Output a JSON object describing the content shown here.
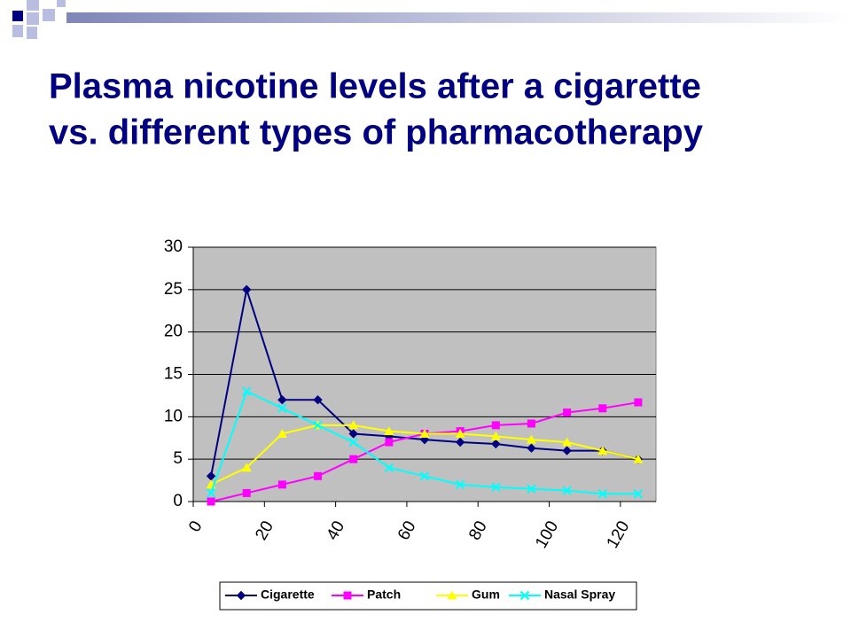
{
  "chart_data": {
    "type": "line",
    "title": [
      "Plasma nicotine levels after a cigarette",
      "vs. different types of pharmacotherapy"
    ],
    "x": [
      5,
      15,
      25,
      35,
      45,
      55,
      65,
      75,
      85,
      95,
      105,
      115,
      125
    ],
    "xlim": [
      0,
      130
    ],
    "xticks": [
      0,
      20,
      40,
      60,
      80,
      100,
      120
    ],
    "ylim": [
      0,
      30
    ],
    "yticks": [
      0,
      5,
      10,
      15,
      20,
      25,
      30
    ],
    "grid": true,
    "legend": "bottom",
    "plot_background": "#c0c0c0",
    "series": [
      {
        "name": "Cigarette",
        "color": "#000080",
        "marker": "diamond",
        "values": [
          3,
          25,
          12,
          12,
          8,
          7.7,
          7.3,
          7,
          6.8,
          6.3,
          6,
          6,
          5
        ]
      },
      {
        "name": "Patch",
        "color": "#ff00ff",
        "marker": "square",
        "values": [
          0,
          1,
          2,
          3,
          5,
          7,
          8,
          8.3,
          9,
          9.2,
          10.5,
          11,
          11.7
        ]
      },
      {
        "name": "Gum",
        "color": "#ffff00",
        "marker": "triangle",
        "values": [
          2,
          4,
          8,
          9,
          9,
          8.3,
          8,
          8,
          7.7,
          7.3,
          7,
          6,
          5
        ]
      },
      {
        "name": "Nasal Spray",
        "color": "#00ffff",
        "marker": "x",
        "values": [
          1,
          13,
          11,
          9,
          7,
          4,
          3,
          2,
          1.7,
          1.5,
          1.3,
          0.9,
          0.9
        ]
      }
    ]
  }
}
